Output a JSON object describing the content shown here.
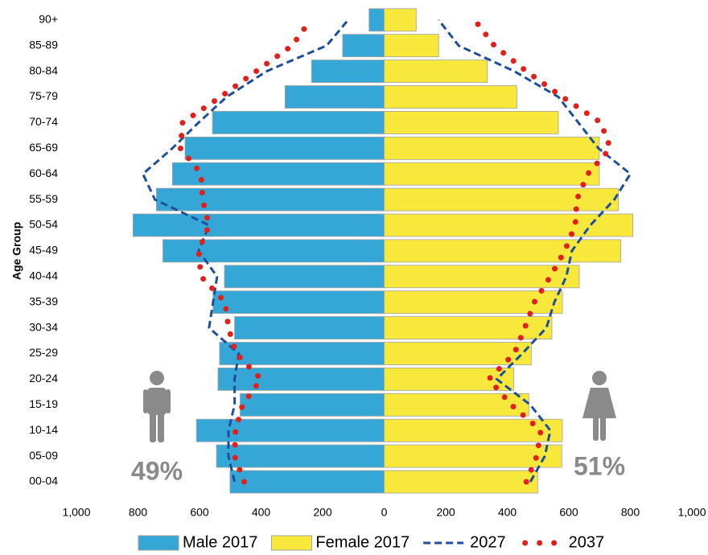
{
  "chart_data": {
    "type": "pyramid",
    "y_label": "Age Group",
    "categories": [
      "00-04",
      "05-09",
      "10-14",
      "15-19",
      "20-24",
      "25-29",
      "30-34",
      "35-39",
      "40-44",
      "45-49",
      "50-54",
      "55-59",
      "60-64",
      "65-69",
      "70-74",
      "75-79",
      "80-84",
      "85-89",
      "90+"
    ],
    "bars": [
      {
        "name": "Male 2017",
        "side": "left",
        "color": "#34a7d7",
        "values": [
          501,
          545,
          610,
          468,
          540,
          535,
          486,
          556,
          519,
          719,
          816,
          740,
          688,
          647,
          558,
          322,
          236,
          135,
          49
        ]
      },
      {
        "name": "Female 2017",
        "side": "right",
        "color": "#f9e83c",
        "values": [
          499,
          577,
          579,
          470,
          421,
          478,
          545,
          579,
          634,
          769,
          808,
          761,
          699,
          699,
          566,
          431,
          335,
          177,
          104
        ]
      }
    ],
    "lines": [
      {
        "name": "2027",
        "style": "dashed",
        "color": "#1f4e9a",
        "male": [
          486,
          506,
          506,
          486,
          486,
          473,
          569,
          556,
          543,
          603,
          569,
          745,
          784,
          688,
          603,
          512,
          382,
          187,
          117
        ],
        "female": [
          475,
          522,
          540,
          475,
          366,
          449,
          527,
          553,
          592,
          610,
          670,
          748,
          800,
          696,
          631,
          566,
          423,
          242,
          177
        ]
      },
      {
        "name": "2037",
        "style": "dotted",
        "color": "#e0201a",
        "male": [
          455,
          486,
          483,
          460,
          400,
          481,
          506,
          517,
          595,
          603,
          569,
          590,
          595,
          662,
          655,
          532,
          416,
          299,
          239
        ],
        "female": [
          462,
          496,
          509,
          413,
          340,
          423,
          457,
          488,
          540,
          587,
          621,
          626,
          662,
          735,
          704,
          579,
          462,
          358,
          294
        ]
      }
    ],
    "male_share": "49%",
    "female_share": "51%",
    "xlim": [
      -1000,
      1000
    ],
    "xticks": [
      {
        "value": -1000,
        "label": "1,000"
      },
      {
        "value": -800,
        "label": "800"
      },
      {
        "value": -600,
        "label": "600"
      },
      {
        "value": -400,
        "label": "400"
      },
      {
        "value": -200,
        "label": "200"
      },
      0,
      200,
      400,
      600,
      800,
      {
        "value": 1000,
        "label": "1,000"
      }
    ]
  }
}
